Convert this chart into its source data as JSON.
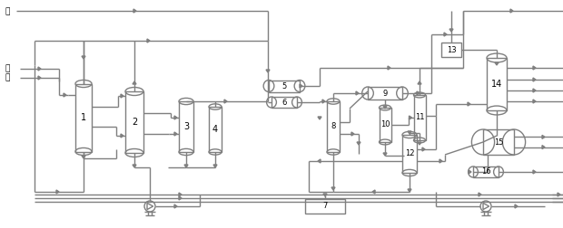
{
  "bg_color": "#ffffff",
  "line_color": "#7f7f7f",
  "line_width": 1.0,
  "text_color": "#000000",
  "labels": {
    "benzene": "苯",
    "hydrogen1": "氢",
    "hydrogen2": "氢"
  },
  "figsize": [
    6.2,
    2.52
  ],
  "dpi": 100
}
